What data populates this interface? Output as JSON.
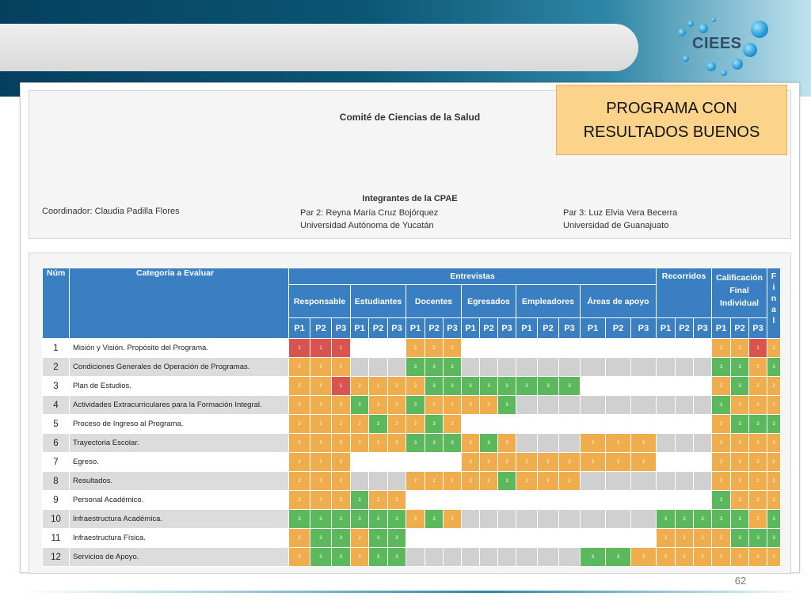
{
  "logo": {
    "text": "CIEES"
  },
  "header_panel": {
    "committee": "Comité de Ciencias de la Salud",
    "members_title": "Integrantes de la CPAE",
    "coordinator": "Coordinador: Claudia Padilla Flores",
    "par2_name": "Par 2: Reyna María Cruz Bojórquez",
    "par2_institution": "Universidad Autónoma de Yucatán",
    "par3_name": "Par 3: Luz Elvia Vera Becerra",
    "par3_institution": "Universidad de Guanajuato"
  },
  "badge": {
    "line1": "PROGRAMA CON",
    "line2": "RESULTADOS BUENOS"
  },
  "table": {
    "headers": {
      "num": "Núm",
      "category": "Categoría a Evaluar",
      "interviews": "Entrevistas",
      "tours": "Recorridos",
      "final_line1": "Calificación",
      "final_line2": "Final",
      "final_line3": "Individual",
      "final_letters": [
        "F",
        "i",
        "n",
        "a",
        "l"
      ]
    },
    "groups": [
      "Responsable",
      "Estudiantes",
      "Docentes",
      "Egresados",
      "Empleadores",
      "Áreas de apoyo"
    ],
    "p_labels": [
      "P1",
      "P2",
      "P3"
    ],
    "rows": [
      {
        "num": "1",
        "category": "Misión y Visión. Propósito del Programa.",
        "values": [
          1,
          1,
          1,
          0,
          0,
          0,
          2,
          2,
          2,
          0,
          0,
          0,
          0,
          0,
          0,
          0,
          0,
          0,
          0,
          0,
          0,
          2,
          2,
          1,
          2
        ]
      },
      {
        "num": "2",
        "category": "Condiciones Generales de Operación de Programas.",
        "values": [
          2,
          2,
          2,
          0,
          0,
          0,
          3,
          3,
          3,
          0,
          0,
          0,
          0,
          0,
          0,
          0,
          0,
          0,
          0,
          0,
          0,
          3,
          3,
          2,
          3
        ]
      },
      {
        "num": "3",
        "category": "Plan de Estudios.",
        "values": [
          2,
          2,
          1,
          2,
          2,
          2,
          2,
          3,
          3,
          3,
          3,
          3,
          3,
          3,
          3,
          0,
          0,
          0,
          0,
          0,
          0,
          2,
          3,
          2,
          2
        ]
      },
      {
        "num": "4",
        "category": "Actividades Extracurriculares para la Formación Integral.",
        "values": [
          2,
          2,
          2,
          3,
          2,
          2,
          3,
          2,
          2,
          2,
          2,
          3,
          0,
          0,
          0,
          0,
          0,
          0,
          0,
          0,
          0,
          3,
          2,
          2,
          2
        ]
      },
      {
        "num": "5",
        "category": "Proceso de Ingreso al Programa.",
        "values": [
          2,
          2,
          2,
          2,
          3,
          2,
          2,
          3,
          2,
          0,
          0,
          0,
          0,
          0,
          0,
          0,
          0,
          0,
          0,
          0,
          0,
          2,
          3,
          3,
          3
        ]
      },
      {
        "num": "6",
        "category": "Trayectoria Escolar.",
        "values": [
          2,
          2,
          2,
          2,
          2,
          2,
          3,
          3,
          3,
          2,
          3,
          2,
          0,
          0,
          0,
          2,
          2,
          2,
          0,
          0,
          0,
          2,
          2,
          2,
          2
        ]
      },
      {
        "num": "7",
        "category": "Egreso.",
        "values": [
          2,
          2,
          2,
          0,
          0,
          0,
          0,
          0,
          0,
          2,
          2,
          2,
          2,
          2,
          2,
          2,
          2,
          2,
          0,
          0,
          0,
          2,
          2,
          2,
          2
        ]
      },
      {
        "num": "8",
        "category": "Resultados.",
        "values": [
          2,
          2,
          2,
          0,
          0,
          0,
          2,
          2,
          2,
          2,
          2,
          3,
          2,
          2,
          2,
          0,
          0,
          0,
          0,
          0,
          0,
          2,
          2,
          2,
          2
        ]
      },
      {
        "num": "9",
        "category": "Personal Académico.",
        "values": [
          2,
          2,
          2,
          3,
          2,
          2,
          0,
          0,
          0,
          0,
          0,
          0,
          0,
          0,
          0,
          0,
          0,
          0,
          0,
          0,
          0,
          3,
          2,
          2,
          2
        ]
      },
      {
        "num": "10",
        "category": "Infraestructura Académica.",
        "values": [
          3,
          3,
          3,
          3,
          3,
          3,
          2,
          3,
          2,
          0,
          0,
          0,
          0,
          0,
          0,
          0,
          0,
          0,
          3,
          3,
          3,
          3,
          3,
          2,
          3
        ]
      },
      {
        "num": "11",
        "category": "Infraestructura Física.",
        "values": [
          2,
          3,
          3,
          2,
          3,
          3,
          0,
          0,
          0,
          0,
          0,
          0,
          0,
          0,
          0,
          0,
          0,
          0,
          2,
          2,
          2,
          2,
          3,
          3,
          3
        ]
      },
      {
        "num": "12",
        "category": "Servicios de Apoyo.",
        "values": [
          2,
          3,
          3,
          2,
          3,
          3,
          0,
          0,
          0,
          0,
          0,
          0,
          0,
          0,
          0,
          3,
          3,
          2,
          2,
          2,
          2,
          2,
          2,
          2,
          2
        ]
      }
    ]
  },
  "page_number": "62",
  "colors": {
    "header": "#3a7fc1",
    "score1": "#d9534f",
    "score2": "#f0ad4e",
    "score3": "#5cb85c",
    "badge": "#fbd38a"
  }
}
